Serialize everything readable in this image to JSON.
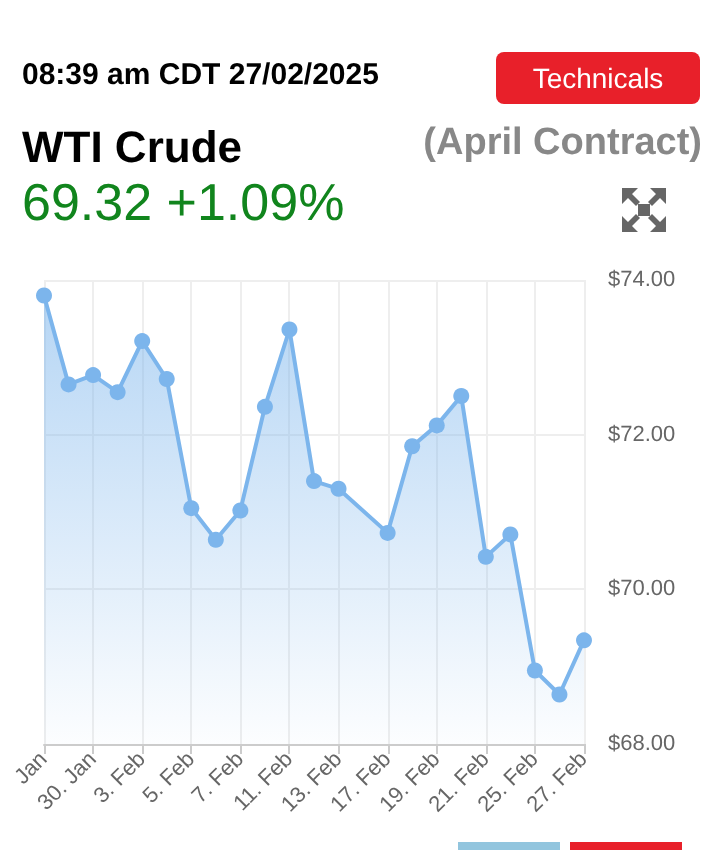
{
  "chart_data": {
    "type": "area",
    "title": "WTI Crude",
    "subtitle": "(April Contract)",
    "annotations": [
      "08:39 am CDT 27/02/2025",
      "69.32 +1.09%",
      "Technicals"
    ],
    "categories": [
      "Jan",
      null,
      "30. Jan",
      null,
      "3. Feb",
      null,
      "5. Feb",
      null,
      "7. Feb",
      null,
      "11. Feb",
      null,
      "13. Feb",
      null,
      "17. Feb",
      null,
      "19. Feb",
      null,
      "21. Feb",
      null,
      "25. Feb",
      null,
      "27. Feb"
    ],
    "series": [
      {
        "color": "#7cb5ec",
        "values": [
          73.8,
          72.65,
          72.77,
          72.55,
          73.21,
          72.72,
          71.05,
          70.64,
          71.02,
          72.36,
          73.36,
          71.4,
          71.3,
          null,
          70.73,
          71.85,
          72.12,
          72.5,
          70.42,
          70.71,
          68.95,
          68.64,
          69.34
        ]
      }
    ],
    "ylim": [
      68,
      74
    ],
    "yticks": [
      {
        "value": 68,
        "label": "$68.00"
      },
      {
        "value": 70,
        "label": "$70.00"
      },
      {
        "value": 72,
        "label": "$72.00"
      },
      {
        "value": 74,
        "label": "$74.00"
      }
    ],
    "grid": true,
    "marker": "circle"
  }
}
